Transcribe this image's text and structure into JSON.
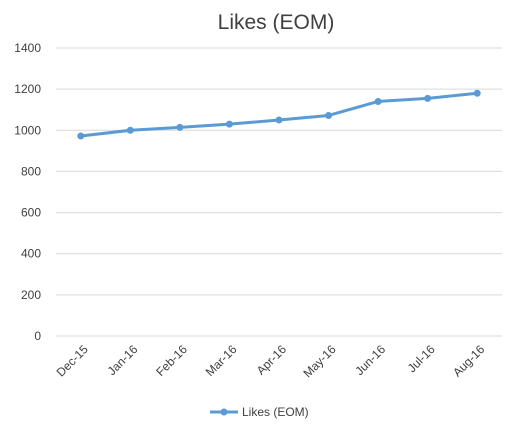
{
  "chart_data": {
    "type": "line",
    "title": "Likes (EOM)",
    "categories": [
      "Dec-15",
      "Jan-16",
      "Feb-16",
      "Mar-16",
      "Apr-16",
      "May-16",
      "Jun-16",
      "Jul-16",
      "Aug-16"
    ],
    "series": [
      {
        "name": "Likes (EOM)",
        "values": [
          972,
          1000,
          1014,
          1030,
          1050,
          1072,
          1140,
          1155,
          1180
        ],
        "color": "#5b9bd5"
      }
    ],
    "yticks": [
      "0",
      "200",
      "400",
      "600",
      "800",
      "1000",
      "1200",
      "1400"
    ],
    "ylim": [
      0,
      1400
    ],
    "grid": true,
    "legend_position": "bottom"
  }
}
